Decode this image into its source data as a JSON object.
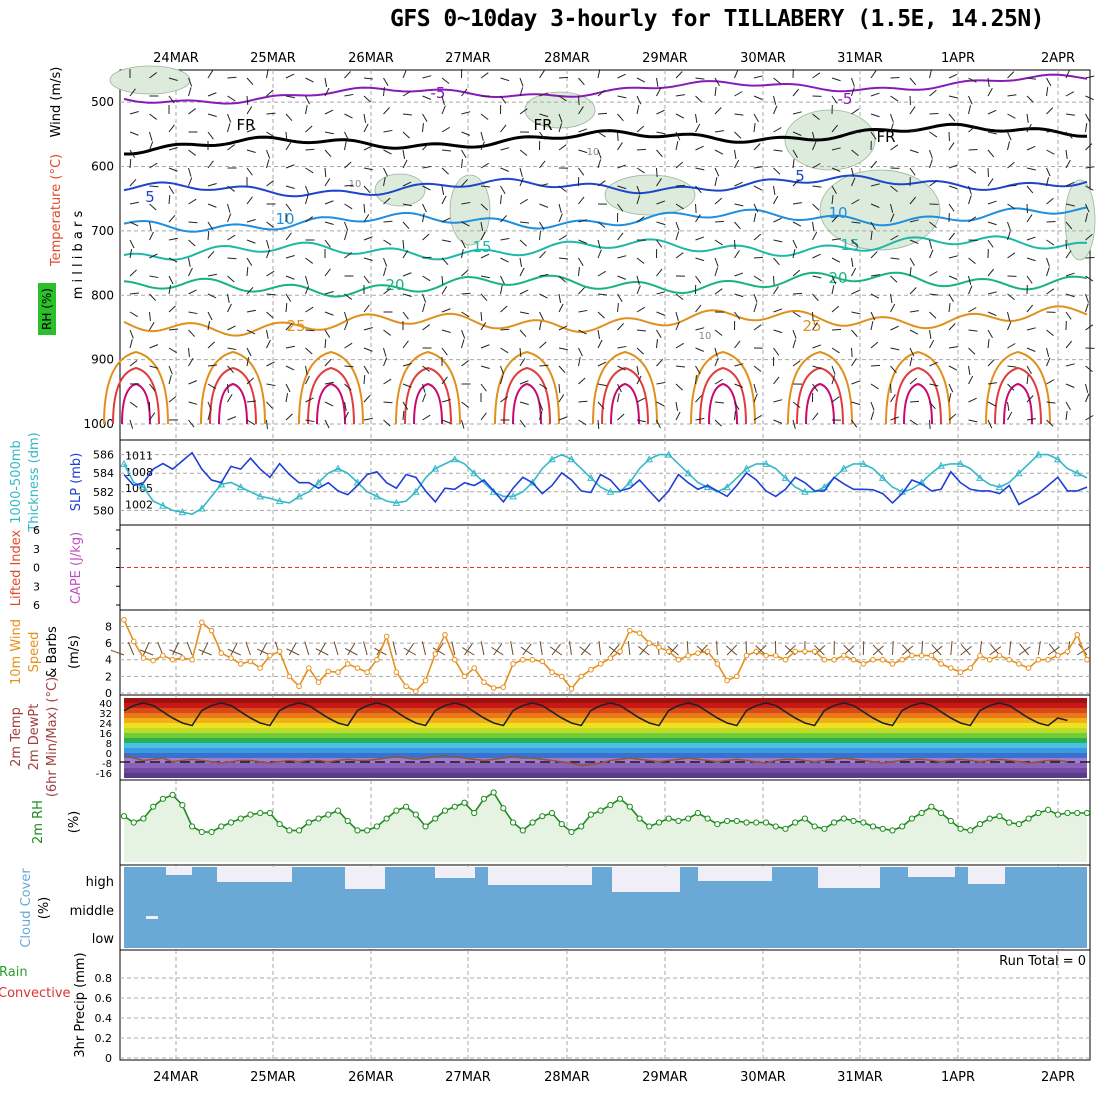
{
  "title": "GFS 0~10day 3-hourly for TILLABERY (1.5E, 14.25N)",
  "dates": [
    "24MAR",
    "25MAR",
    "26MAR",
    "27MAR",
    "28MAR",
    "29MAR",
    "30MAR",
    "31MAR",
    "1APR",
    "2APR"
  ],
  "colors": {
    "grid": "#a8a8a8",
    "slp": "#1f3fd6",
    "thickness": "#35b8c8",
    "wind10": "#e6901c",
    "rh2m": "#1e8c1e",
    "cloud": "#6aa9d6",
    "cloud_gap": "#f0eef6",
    "lifted_zero": "#e03030"
  },
  "chart_data": [
    {
      "panel": "upper_air",
      "type": "contour",
      "ylabels": [
        "Wind (m/s)",
        "Temperature (°C)",
        "m i l l i b a r s",
        "RH (%)"
      ],
      "yticks": [
        500,
        600,
        700,
        800,
        900,
        1000
      ],
      "ylim": [
        1000,
        450
      ],
      "isotherms": [
        {
          "label": "-5",
          "p": 495,
          "color": "#8a1ab8"
        },
        {
          "label": "FR",
          "p": 570,
          "color": "#000000"
        },
        {
          "label": "5",
          "p": 638,
          "color": "#1d45cc"
        },
        {
          "label": "10",
          "p": 690,
          "color": "#1e8ee0"
        },
        {
          "label": "15",
          "p": 735,
          "color": "#1eb8a8"
        },
        {
          "label": "20",
          "p": 790,
          "color": "#18b47c"
        },
        {
          "label": "25",
          "p": 848,
          "color": "#e0901c"
        }
      ],
      "inline_labels": [
        "-5",
        "-5",
        "FR",
        "FR",
        "FR",
        "5",
        "5",
        "10",
        "10",
        "15",
        "15",
        "20",
        "20",
        "25",
        "25",
        "10",
        "10",
        "10"
      ]
    },
    {
      "panel": "slp_thickness",
      "type": "line",
      "ylabel_left": "1000-500mb Thickness (dm)",
      "ylabel_right": "SLP (mb)",
      "yticks_left": [
        586,
        584,
        582,
        580
      ],
      "yticks_right": [
        1011,
        1008,
        1005,
        1002
      ],
      "series": [
        {
          "name": "SLP",
          "values": [
            1007.5,
            1005.5,
            1006,
            1008.5,
            1009.5,
            1008.5,
            1010,
            1011.5,
            1008.5,
            1006.5,
            1006,
            1009,
            1008.5,
            1010.5,
            1008.5,
            1007,
            1009.5,
            1007.5,
            1006,
            1006,
            1005,
            1006,
            1004.5,
            1003.8,
            1005.5,
            1007.5,
            1008,
            1006,
            1005,
            1007.5,
            1007,
            1004.5,
            1002.5,
            1005,
            1004.8,
            1006,
            1005.5,
            1006.5,
            1004.5,
            1002.5,
            1005,
            1007,
            1006,
            1004,
            1005.5,
            1007.8,
            1006.5,
            1004.5,
            1004.2,
            1007.5,
            1006.5,
            1004.5,
            1005,
            1006.5,
            1004.5,
            1002.6,
            1004.5,
            1007.5,
            1006,
            1004.8,
            1005.5,
            1004.5,
            1003.5,
            1005.5,
            1007.8,
            1006.5,
            1004.5,
            1003.5,
            1004.8,
            1007,
            1006,
            1004.5,
            1004.5,
            1007,
            1005.8,
            1004.8,
            1004.8,
            1004.7,
            1004,
            1002.3,
            1004,
            1006.5,
            1005.8,
            1004.5,
            1004.8,
            1008,
            1006,
            1004.8,
            1004.5,
            1004.5,
            1004,
            1005.5,
            1002,
            1003,
            1004,
            1005.5,
            1007,
            1004.5,
            1004.5,
            1005.2
          ]
        },
        {
          "name": "Thickness",
          "values": [
            585,
            583,
            582.5,
            581,
            580.5,
            580,
            579.8,
            579.6,
            580.2,
            581.5,
            582.8,
            583,
            582.5,
            582,
            581.5,
            581.3,
            581,
            580.8,
            581.5,
            582,
            583,
            584,
            584.5,
            584,
            583,
            582,
            581.5,
            581,
            580.8,
            581,
            582,
            583.5,
            584.5,
            585,
            585.5,
            585,
            584,
            583,
            582,
            581.5,
            581.5,
            582,
            583,
            584.5,
            585.5,
            586,
            585.5,
            584.5,
            583.5,
            582.5,
            582,
            582,
            583,
            584.5,
            585.5,
            586,
            586,
            585,
            584,
            583,
            582.5,
            582,
            582.5,
            583.5,
            584.5,
            585,
            585,
            584.5,
            583.5,
            582.5,
            582,
            582,
            582.5,
            583.5,
            584.5,
            585,
            585,
            584.5,
            583.5,
            582.5,
            582,
            582.3,
            583,
            584,
            584.8,
            585,
            585,
            584.5,
            583.5,
            582.8,
            582.5,
            583,
            584,
            585,
            586,
            586,
            585.5,
            584.5,
            584,
            583.5
          ]
        }
      ]
    },
    {
      "panel": "cape_lifted",
      "type": "line",
      "ylabel_left": "Lifted Index",
      "ylabel_right": "CAPE (J/kg)",
      "yticks": [
        "6",
        "3",
        "0",
        "3",
        "6"
      ],
      "ylim": [
        -6,
        6
      ],
      "series": [
        {
          "name": "Lifted Index",
          "values": []
        }
      ]
    },
    {
      "panel": "wind10m",
      "type": "line",
      "ylabels": [
        "10m Wind",
        "Speed",
        "& Barbs",
        "(m/s)"
      ],
      "yticks": [
        0,
        2,
        4,
        6,
        8
      ],
      "ylim": [
        0,
        9.5
      ],
      "series": [
        {
          "name": "10m Wind Speed",
          "values": [
            8.8,
            6.2,
            4.2,
            3.9,
            4.5,
            4.0,
            4.2,
            4.0,
            8.5,
            7.5,
            4.8,
            4.2,
            3.5,
            3.8,
            3.0,
            4.5,
            5.0,
            2.0,
            0.8,
            3.0,
            1.3,
            2.6,
            2.5,
            3.5,
            3.0,
            2.5,
            4.0,
            6.8,
            2.5,
            0.8,
            0.2,
            1.5,
            4.7,
            7.0,
            4.0,
            2.0,
            3.0,
            1.3,
            0.6,
            0.7,
            3.5,
            4.0,
            4.0,
            3.8,
            2.5,
            2.0,
            0.5,
            2.0,
            2.8,
            3.5,
            4.2,
            5.0,
            7.5,
            7.2,
            6.0,
            5.5,
            5.0,
            4.0,
            4.5,
            4.8,
            5.0,
            3.5,
            1.5,
            2.0,
            4.5,
            5.0,
            4.5,
            4.5,
            4.0,
            5.0,
            5.0,
            5.0,
            4.0,
            4.0,
            4.5,
            4.0,
            3.5,
            4.0,
            4.0,
            3.5,
            4.0,
            4.5,
            4.5,
            4.5,
            3.5,
            3.0,
            2.5,
            3.0,
            4.5,
            4.0,
            4.5,
            4.0,
            3.5,
            3.0,
            4.0,
            4.0,
            4.5,
            5.0,
            7.0,
            4.0
          ]
        }
      ]
    },
    {
      "panel": "temp2m",
      "type": "area",
      "ylabels": [
        "2m Temp",
        "2m DewPt",
        "(6hr Min/Max) (°C)"
      ],
      "yticks": [
        "40",
        "32",
        "24",
        "16",
        "8",
        "0",
        "-8",
        "-16"
      ],
      "ylim": [
        -20,
        44
      ],
      "series": [
        {
          "name": "2m Temp",
          "values": [
            34,
            38,
            40,
            38,
            33,
            28,
            24,
            22,
            34,
            38,
            40,
            38,
            33,
            28,
            24,
            22,
            34,
            38,
            40,
            38,
            33,
            28,
            24,
            22,
            34,
            38,
            40,
            38,
            33,
            28,
            24,
            22,
            34,
            38,
            40,
            38,
            33,
            28,
            24,
            22,
            34,
            38,
            40,
            38,
            33,
            28,
            24,
            22,
            34,
            38,
            40,
            38,
            33,
            28,
            24,
            22,
            34,
            38,
            40,
            38,
            33,
            28,
            24,
            22,
            34,
            38,
            40,
            38,
            33,
            28,
            24,
            22,
            34,
            38,
            40,
            38,
            33,
            28,
            24,
            22,
            34,
            38,
            40,
            38,
            33,
            28,
            24,
            22,
            34,
            38,
            40,
            38,
            33,
            28,
            24,
            22,
            28,
            26
          ]
        },
        {
          "name": "2m DewPt",
          "values": [
            -2,
            -4,
            -6,
            -5,
            -4,
            -7,
            -6,
            -5,
            -6,
            -7,
            -8,
            -7,
            -6,
            -6,
            -7,
            -8,
            -7,
            -6,
            -7,
            -6,
            -6,
            -7,
            -6,
            -5,
            -6,
            -6,
            -5,
            -4,
            -3,
            -4,
            -5,
            -4,
            -3,
            -2,
            -3,
            -4,
            -5,
            -6,
            -5,
            -4,
            -3,
            -4,
            -4,
            -5,
            -6,
            -7,
            -8,
            -10,
            -9,
            -8,
            -6,
            -5,
            -4,
            -5,
            -6,
            -7,
            -6,
            -5,
            -4,
            -5,
            -6,
            -7,
            -6,
            -5,
            -6,
            -7,
            -8,
            -6,
            -5,
            -5,
            -6,
            -7,
            -6,
            -5,
            -4,
            -5,
            -6,
            -7,
            -8,
            -7,
            -6,
            -5,
            -5,
            -6,
            -7,
            -6,
            -5,
            -6,
            -7,
            -6,
            -5,
            -6,
            -7,
            -8,
            -7,
            -6,
            -6,
            -7
          ]
        }
      ]
    },
    {
      "panel": "rh2m",
      "type": "area",
      "ylabels": [
        "2m RH",
        "(%)"
      ],
      "ylim": [
        0,
        100
      ],
      "series": [
        {
          "name": "2m RH",
          "values": [
            58,
            50,
            55,
            70,
            80,
            85,
            72,
            45,
            38,
            38,
            45,
            50,
            55,
            60,
            62,
            62,
            48,
            40,
            40,
            50,
            55,
            60,
            65,
            52,
            40,
            40,
            45,
            55,
            65,
            70,
            60,
            45,
            55,
            65,
            70,
            75,
            62,
            80,
            88,
            68,
            50,
            40,
            50,
            58,
            62,
            48,
            38,
            45,
            60,
            65,
            72,
            80,
            70,
            55,
            45,
            50,
            55,
            52,
            55,
            62,
            55,
            48,
            52,
            52,
            50,
            50,
            50,
            45,
            42,
            50,
            55,
            45,
            42,
            50,
            55,
            52,
            50,
            45,
            42,
            40,
            45,
            55,
            62,
            70,
            62,
            52,
            42,
            40,
            48,
            55,
            58,
            50,
            48,
            55,
            62,
            66,
            60,
            62,
            62,
            62
          ]
        }
      ]
    },
    {
      "panel": "cloud_cover",
      "type": "area",
      "ylabels": [
        "Cloud Cover",
        "(%)"
      ],
      "ytick_labels": [
        "high",
        "middle",
        "low"
      ]
    },
    {
      "panel": "precip",
      "type": "bar",
      "ylabels": [
        "Total / Rain",
        "Convective",
        "3hr Precip (mm)"
      ],
      "yticks": [
        0,
        0.2,
        0.4,
        0.6,
        0.8
      ],
      "ylim": [
        0,
        1
      ],
      "annotation": "Run Total = 0",
      "values": []
    }
  ]
}
